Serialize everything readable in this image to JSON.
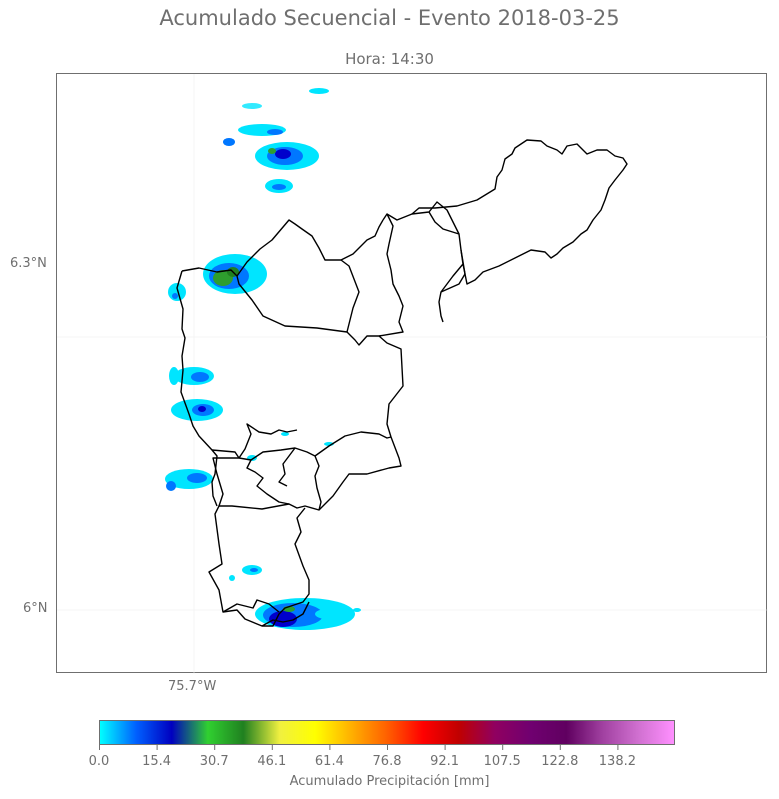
{
  "title": "Acumulado Secuencial - Evento 2018-03-25",
  "subtitle": "Hora: 14:30",
  "axes": {
    "lat_labels": [
      "6.3°N",
      "6°N"
    ],
    "lon_labels": [
      "75.7°W"
    ]
  },
  "colorbar": {
    "label": "Acumulado Precipitación [mm]",
    "ticks": [
      "0.0",
      "15.4",
      "30.7",
      "46.1",
      "61.4",
      "76.8",
      "92.1",
      "107.5",
      "122.8",
      "138.2"
    ],
    "range": [
      0,
      153.6
    ],
    "colors": [
      "#00ffff",
      "#0060ff",
      "#0000c0",
      "#30d030",
      "#208020",
      "#f0f040",
      "#ffff00",
      "#ffb000",
      "#ff6000",
      "#ff0000",
      "#c00000",
      "#900060",
      "#700070",
      "#600060",
      "#a040a0",
      "#d070d0",
      "#ff90ff"
    ]
  },
  "map": {
    "boundary_color": "#000000",
    "precip_colors": {
      "light": "#00e5ff",
      "medium": "#0077ff",
      "heavy": "#0000cc",
      "green": "#2e9e2e"
    }
  }
}
